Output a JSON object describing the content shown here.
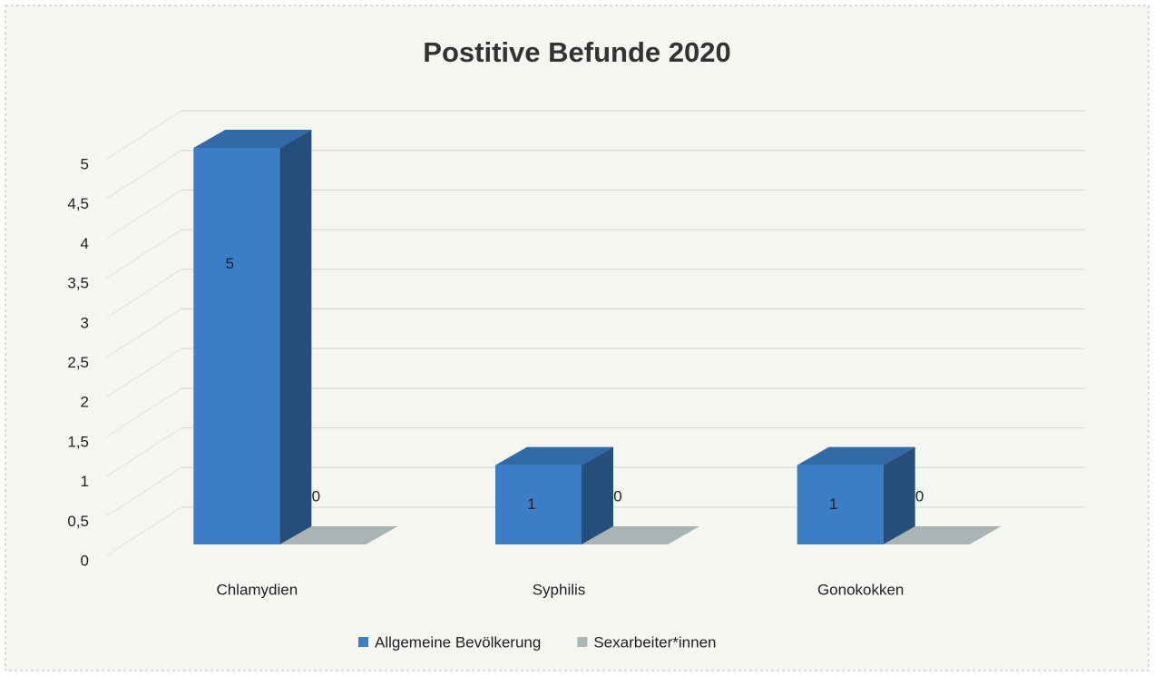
{
  "chart_data": {
    "type": "bar3d",
    "title": "Postitive Befunde 2020",
    "categories": [
      "Chlamydien",
      "Syphilis",
      "Gonokokken"
    ],
    "series": [
      {
        "name": "Allgemeine Bevölkerung",
        "color": "#3b7dc6",
        "values": [
          5,
          1,
          1
        ]
      },
      {
        "name": "Sexarbeiter*innen",
        "color": "#a9b4b4",
        "values": [
          0,
          0,
          0
        ]
      }
    ],
    "ylim": [
      0,
      5
    ],
    "yticks": [
      0,
      {
        "value": 0.5,
        "label": "0,5"
      },
      1,
      {
        "value": 1.5,
        "label": "1,5"
      },
      2,
      {
        "value": 2.5,
        "label": "2,5"
      },
      3,
      {
        "value": 3.5,
        "label": "3,5"
      },
      4,
      {
        "value": 4.5,
        "label": "4,5"
      },
      5
    ],
    "grid": true,
    "legend": "bottom"
  }
}
